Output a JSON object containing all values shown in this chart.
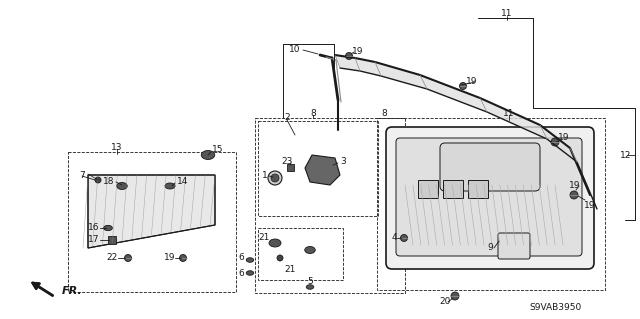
{
  "bg_color": "#ffffff",
  "line_color": "#1a1a1a",
  "diagram_code": "S9VAB3950",
  "fig_w": 6.4,
  "fig_h": 3.19,
  "dpi": 100
}
